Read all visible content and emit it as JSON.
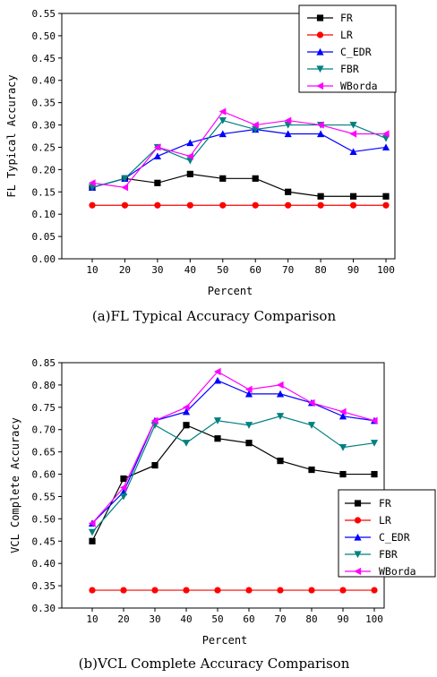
{
  "chart_data": [
    {
      "type": "line",
      "caption": "(a)FL Typical Accuracy Comparison",
      "xlabel": "Percent",
      "ylabel": "FL Typical Accuracy",
      "x": [
        10,
        20,
        30,
        40,
        50,
        60,
        70,
        80,
        90,
        100
      ],
      "ylim": [
        0,
        0.55
      ],
      "yticks": [
        "0.00",
        "0.05",
        "0.10",
        "0.15",
        "0.20",
        "0.25",
        "0.30",
        "0.35",
        "0.40",
        "0.45",
        "0.50",
        "0.55"
      ],
      "legend_position": "top-right",
      "grid": false,
      "series": [
        {
          "name": "FR",
          "color": "#000000",
          "marker": "square",
          "values": [
            0.16,
            0.18,
            0.17,
            0.19,
            0.18,
            0.18,
            0.15,
            0.14,
            0.14,
            0.14
          ]
        },
        {
          "name": "LR",
          "color": "#ff0000",
          "marker": "circle",
          "values": [
            0.12,
            0.12,
            0.12,
            0.12,
            0.12,
            0.12,
            0.12,
            0.12,
            0.12,
            0.12
          ]
        },
        {
          "name": "C_EDR",
          "color": "#0000ff",
          "marker": "triangle-up",
          "values": [
            0.16,
            0.18,
            0.23,
            0.26,
            0.28,
            0.29,
            0.28,
            0.28,
            0.24,
            0.25
          ]
        },
        {
          "name": "FBR",
          "color": "#008080",
          "marker": "triangle-down",
          "values": [
            0.16,
            0.18,
            0.25,
            0.22,
            0.31,
            0.29,
            0.3,
            0.3,
            0.3,
            0.27
          ]
        },
        {
          "name": "WBorda",
          "color": "#ff00ff",
          "marker": "triangle-left",
          "values": [
            0.17,
            0.16,
            0.25,
            0.23,
            0.33,
            0.3,
            0.31,
            0.3,
            0.28,
            0.28
          ]
        }
      ]
    },
    {
      "type": "line",
      "caption": "(b)VCL Complete Accuracy Comparison",
      "xlabel": "Percent",
      "ylabel": "VCL Complete Accuracy",
      "x": [
        10,
        20,
        30,
        40,
        50,
        60,
        70,
        80,
        90,
        100
      ],
      "ylim": [
        0.3,
        0.85
      ],
      "yticks": [
        "0.30",
        "0.35",
        "0.40",
        "0.45",
        "0.50",
        "0.55",
        "0.60",
        "0.65",
        "0.70",
        "0.75",
        "0.80",
        "0.85"
      ],
      "legend_position": "lower-right",
      "grid": false,
      "series": [
        {
          "name": "FR",
          "color": "#000000",
          "marker": "square",
          "values": [
            0.45,
            0.59,
            0.62,
            0.71,
            0.68,
            0.67,
            0.63,
            0.61,
            0.6,
            0.6
          ]
        },
        {
          "name": "LR",
          "color": "#ff0000",
          "marker": "circle",
          "values": [
            0.34,
            0.34,
            0.34,
            0.34,
            0.34,
            0.34,
            0.34,
            0.34,
            0.34,
            0.34
          ]
        },
        {
          "name": "C_EDR",
          "color": "#0000ff",
          "marker": "triangle-up",
          "values": [
            0.49,
            0.56,
            0.72,
            0.74,
            0.81,
            0.78,
            0.78,
            0.76,
            0.73,
            0.72
          ]
        },
        {
          "name": "FBR",
          "color": "#008080",
          "marker": "triangle-down",
          "values": [
            0.47,
            0.55,
            0.71,
            0.67,
            0.72,
            0.71,
            0.73,
            0.71,
            0.66,
            0.67
          ]
        },
        {
          "name": "WBorda",
          "color": "#ff00ff",
          "marker": "triangle-left",
          "values": [
            0.49,
            0.57,
            0.72,
            0.75,
            0.83,
            0.79,
            0.8,
            0.76,
            0.74,
            0.72
          ]
        }
      ]
    }
  ]
}
